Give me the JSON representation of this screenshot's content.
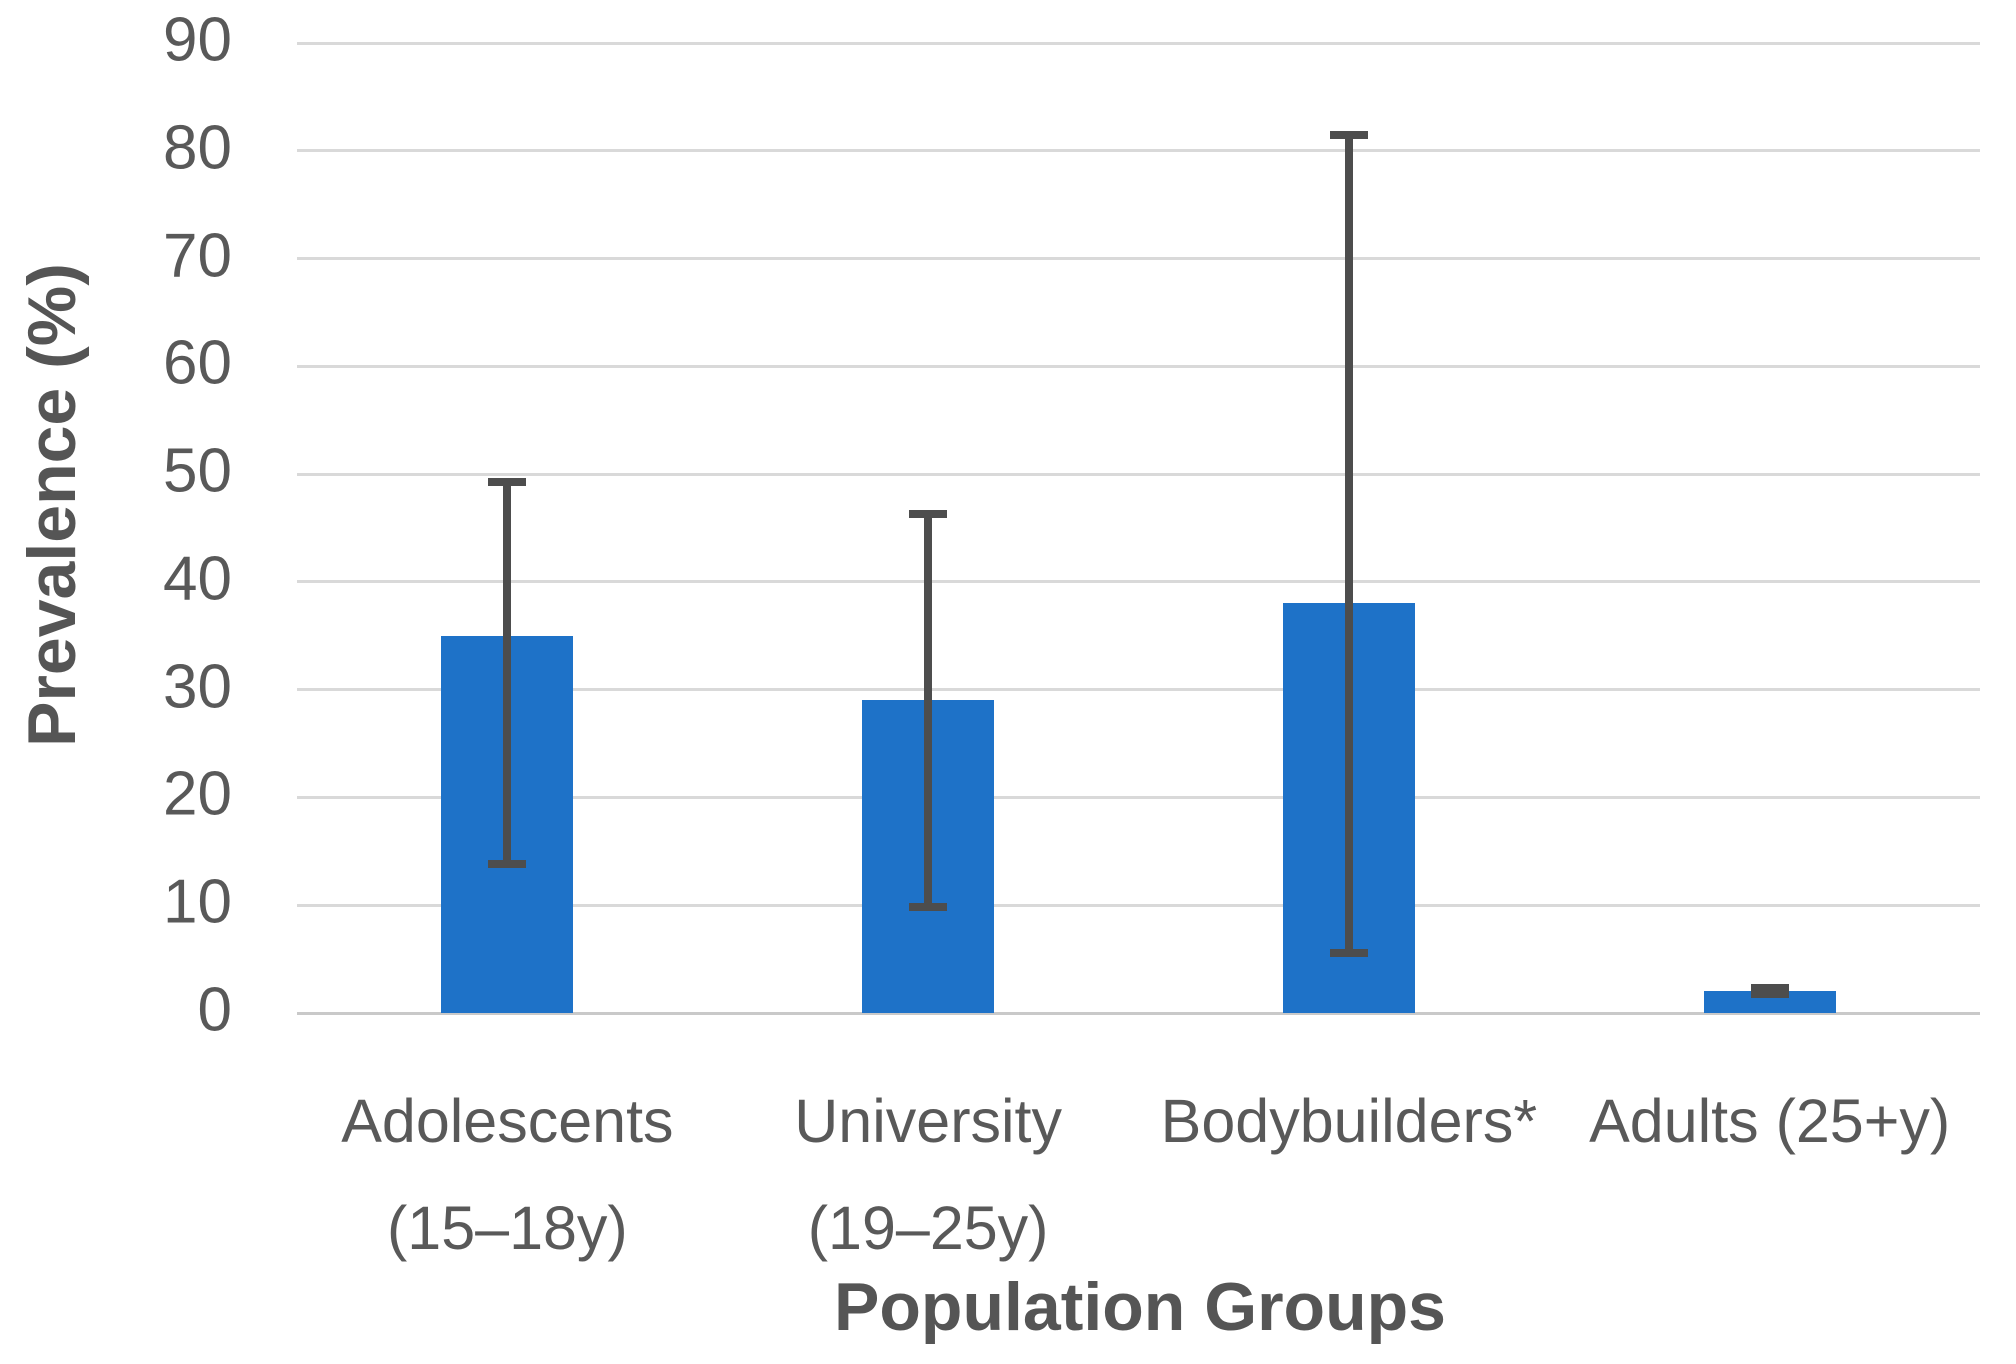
{
  "chart_data": {
    "type": "bar",
    "title": "",
    "xlabel": "Population Groups",
    "ylabel": "Prevalence (%)",
    "ylim": [
      0,
      90
    ],
    "yticks": [
      0,
      10,
      20,
      30,
      40,
      50,
      60,
      70,
      80,
      90
    ],
    "grid": true,
    "legend": false,
    "categories": [
      "Adolescents (15–18y)",
      "University (19–25y)",
      "Bodybuilders*",
      "Adults (25+y)"
    ],
    "category_label_lines": [
      [
        "Adolescents",
        "(15–18y)"
      ],
      [
        "University",
        "(19–25y)"
      ],
      [
        "Bodybuilders*"
      ],
      [
        "Adults (25+y)"
      ]
    ],
    "series": [
      {
        "name": "Prevalence (%)",
        "values": [
          35,
          29,
          38,
          2
        ],
        "error_low": [
          13.8,
          9.8,
          5.6,
          1.8
        ],
        "error_high": [
          49.3,
          46.3,
          81.5,
          2.3
        ]
      }
    ],
    "colors": {
      "bar": "#1E72C8",
      "error": "#4D4D4D",
      "grid": "#D9D9D9",
      "axis_line": "#C9C9C9",
      "text": "#595959"
    }
  }
}
